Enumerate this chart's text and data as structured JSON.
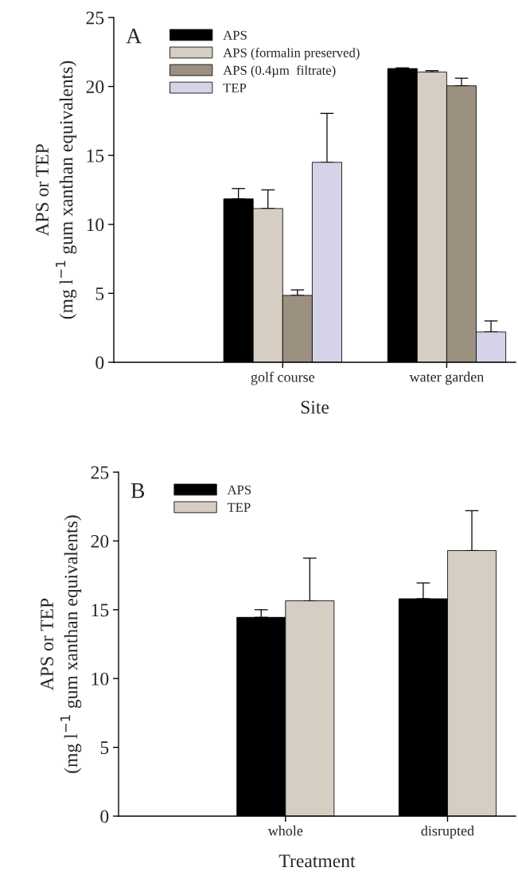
{
  "chart_data": [
    {
      "type": "bar",
      "xlabel": "Site",
      "ylabel": "APS or TEP\n(mg l$^{−1}$ gum xanthan equivalents)",
      "categories": [
        null,
        "golf course",
        "water garden"
      ],
      "ylim": [
        0,
        25
      ],
      "yticks": [
        0,
        5,
        10,
        15,
        20,
        25
      ],
      "legend": "top left",
      "annotations": [
        "A"
      ],
      "series": [
        {
          "name": "APS",
          "color": "#000000",
          "values": [
            null,
            11.85,
            21.3
          ],
          "errors": [
            null,
            [
              11.85,
              12.6
            ],
            [
              21.3,
              21.35
            ]
          ]
        },
        {
          "name": "APS (formalin preserved)",
          "color": "#d6cdc3",
          "values": [
            null,
            11.15,
            21.05
          ],
          "errors": [
            null,
            [
              11.15,
              12.5
            ],
            [
              21.05,
              21.15
            ]
          ]
        },
        {
          "name": "APS (0.4µm  filtrate)",
          "color": "#9c9080",
          "values": [
            null,
            4.85,
            20.05
          ],
          "errors": [
            null,
            [
              4.85,
              5.25
            ],
            [
              20.05,
              20.6
            ]
          ]
        },
        {
          "name": "TEP",
          "color": "#d5d3e8",
          "values": [
            null,
            14.5,
            2.2
          ],
          "errors": [
            null,
            [
              14.5,
              18.05
            ],
            [
              2.2,
              3.0
            ]
          ]
        }
      ]
    },
    {
      "type": "bar",
      "xlabel": "Treatment",
      "ylabel": "APS or TEP\n(mg l$^{−1}$ gum xanthan equivalents)",
      "categories": [
        null,
        "whole",
        "disrupted"
      ],
      "ylim": [
        0,
        25
      ],
      "yticks": [
        0,
        5,
        10,
        15,
        20,
        25
      ],
      "legend": "top left",
      "annotations": [
        "B"
      ],
      "series": [
        {
          "name": "APS",
          "color": "#000000",
          "values": [
            null,
            14.45,
            15.8
          ],
          "errors": [
            null,
            [
              14.45,
              15.0
            ],
            [
              15.8,
              16.95
            ]
          ]
        },
        {
          "name": "TEP",
          "color": "#d6cdc3",
          "values": [
            null,
            15.65,
            19.3
          ],
          "errors": [
            null,
            [
              15.65,
              18.75
            ],
            [
              19.3,
              22.2
            ]
          ]
        }
      ]
    }
  ]
}
